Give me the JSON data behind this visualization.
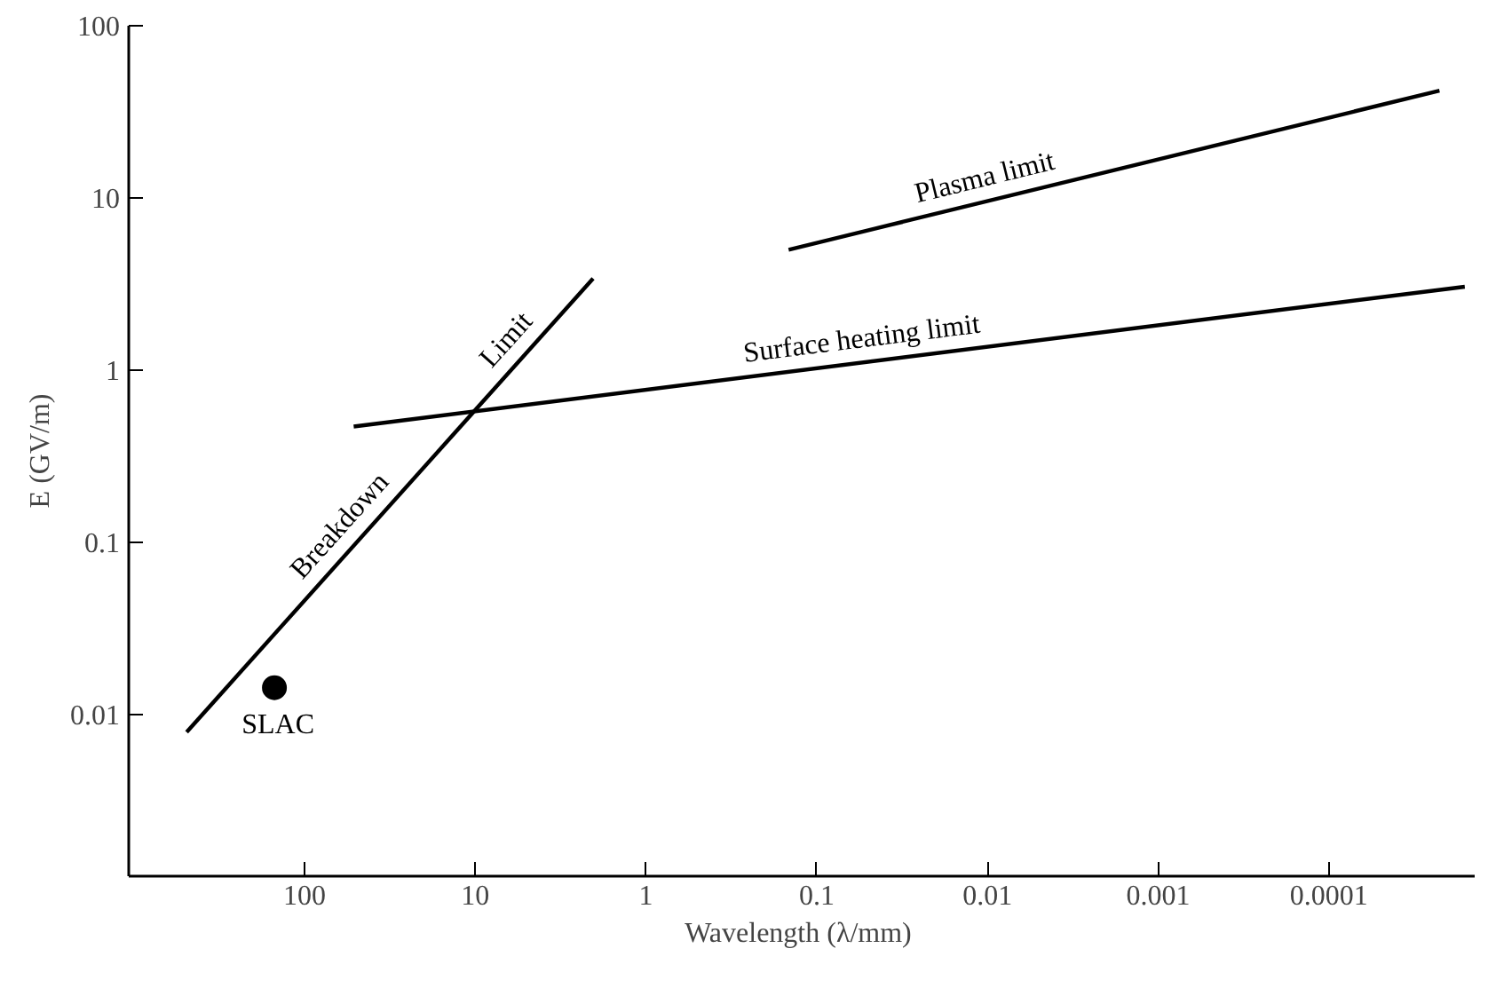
{
  "chart_data": {
    "type": "line",
    "xlabel": "Wavelength  (λ/mm)",
    "ylabel": "E (GV/m)",
    "log": "xy",
    "xlim": [
      1070,
      1.4e-05
    ],
    "ylim": [
      0.00115,
      100
    ],
    "xticks": [
      100,
      10,
      1,
      0.1,
      0.01,
      0.001,
      0.0001
    ],
    "yticks": [
      0.01,
      0.1,
      1,
      10,
      100
    ],
    "grid": false,
    "series": [
      {
        "name": "Breakdown Limit",
        "color": "#000000",
        "x": [
          490,
          2.04
        ],
        "values": [
          0.0079,
          3.4
        ]
      },
      {
        "name": "Surface heating limit",
        "color": "#000000",
        "x": [
          51.5,
          1.6e-05
        ],
        "values": [
          0.47,
          3.05
        ]
      },
      {
        "name": "Plasma limit",
        "color": "#000000",
        "x": [
          0.146,
          2.25e-05
        ],
        "values": [
          5.0,
          42
        ]
      },
      {
        "name": "SLAC",
        "type": "scatter",
        "color": "#000000",
        "marker": "circle",
        "x": [
          150
        ],
        "values": [
          0.0143
        ]
      }
    ]
  }
}
